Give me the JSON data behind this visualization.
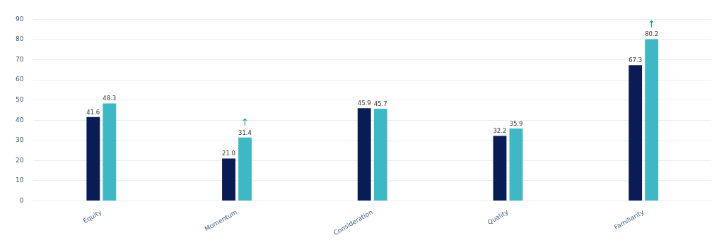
{
  "chart_data": {
    "type": "bar",
    "categories": [
      "Equity",
      "Momentum",
      "Consideration",
      "Quality",
      "Familiarity"
    ],
    "series": [
      {
        "color": "#0a1c56",
        "values": [
          41.6,
          21.0,
          45.9,
          32.2,
          67.3
        ],
        "value_labels": [
          "41.6",
          "21.0",
          "45.9",
          "32.2",
          "67.3"
        ]
      },
      {
        "color": "#3fb8c6",
        "values": [
          48.3,
          31.4,
          45.7,
          35.9,
          80.2
        ],
        "value_labels": [
          "48.3",
          "31.4",
          "45.7",
          "35.9",
          "80.2"
        ]
      }
    ],
    "ylim": [
      0,
      90
    ],
    "yticks": [
      0,
      10,
      20,
      30,
      40,
      50,
      60,
      70,
      80,
      90
    ],
    "grid": "y",
    "legend": false,
    "annotations": [
      {
        "text": "↑",
        "x": "Momentum",
        "y": 31.4
      },
      {
        "text": "↑",
        "x": "Familiarity",
        "y": 80.2
      }
    ]
  }
}
